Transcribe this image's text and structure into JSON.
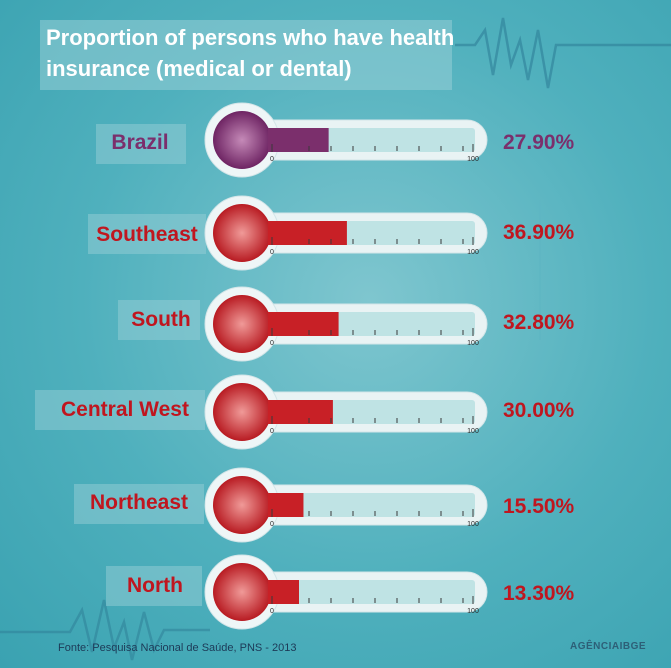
{
  "title": "Proportion of persons who have health insurance (medical or dental)",
  "source": "Fonte: Pesquisa Nacional de Saúde, PNS - 2013",
  "brand": "AGÊNCIAIBGE",
  "scale_min_label": "0",
  "scale_max_label": "100",
  "colors": {
    "brazil": "#7b2f6c",
    "region": "#c82026",
    "background": "#4fb0bd"
  },
  "chart_data": {
    "type": "bar",
    "title": "Proportion of persons who have health insurance (medical or dental)",
    "categories": [
      "Brazil",
      "Southeast",
      "South",
      "Central West",
      "Northeast",
      "North"
    ],
    "values": [
      27.9,
      36.9,
      32.8,
      30.0,
      15.5,
      13.3
    ],
    "value_labels": [
      "27.90%",
      "36.90%",
      "32.80%",
      "30.00%",
      "15.50%",
      "13.30%"
    ],
    "xlim": [
      0,
      100
    ],
    "grid": false
  }
}
